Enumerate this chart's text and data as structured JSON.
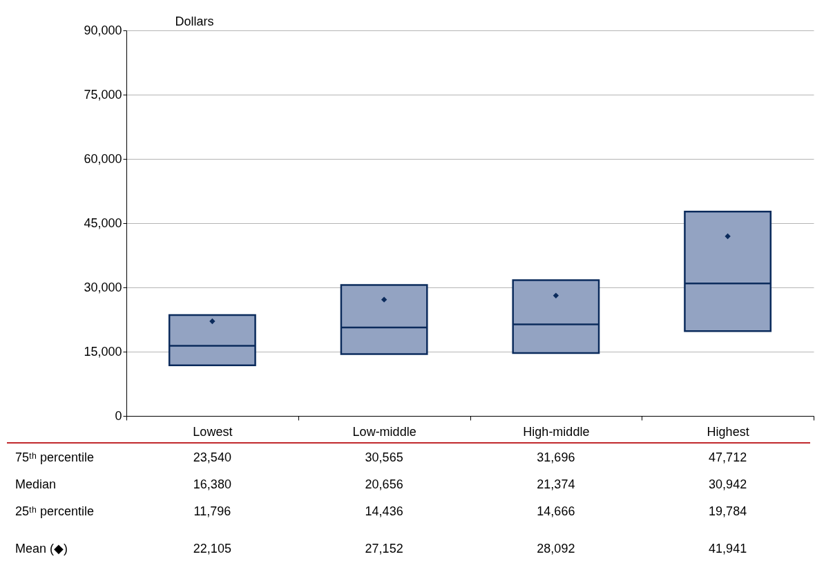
{
  "chart_data": {
    "type": "box",
    "ylabel": "Dollars",
    "categories": [
      "Lowest",
      "Low-middle",
      "High-middle",
      "Highest"
    ],
    "series": [
      {
        "color": "#93a3c2",
        "boxes": [
          {
            "q1": 11796,
            "median": 16380,
            "q3": 23540,
            "mean": 22105
          },
          {
            "q1": 14436,
            "median": 20656,
            "q3": 30565,
            "mean": 27152
          },
          {
            "q1": 14666,
            "median": 21374,
            "q3": 31696,
            "mean": 28092
          },
          {
            "q1": 19784,
            "median": 30942,
            "q3": 47712,
            "mean": 41941
          }
        ],
        "value_labels": [
          [
            "23,540",
            "16,380",
            "11,796",
            "22,105"
          ],
          [
            "30,565",
            "20,656",
            "14,436",
            "27,152"
          ],
          [
            "31,696",
            "21,374",
            "14,666",
            "28,092"
          ],
          [
            "47,712",
            "30,942",
            "19,784",
            "41,941"
          ]
        ]
      }
    ],
    "ylim": [
      0,
      90000
    ],
    "yticks": [
      0,
      {
        "value": 15000,
        "label": "15,000"
      },
      {
        "value": 30000,
        "label": "30,000"
      },
      {
        "value": 45000,
        "label": "45,000"
      },
      {
        "value": 60000,
        "label": "60,000"
      },
      {
        "value": 75000,
        "label": "75,000"
      },
      {
        "value": 90000,
        "label": "90,000"
      }
    ],
    "grid": "y",
    "marker": "diamond",
    "annotations": [
      "75ᵗʰ percentile",
      "Median",
      "25ᵗʰ percentile",
      "Mean (◆)"
    ]
  }
}
